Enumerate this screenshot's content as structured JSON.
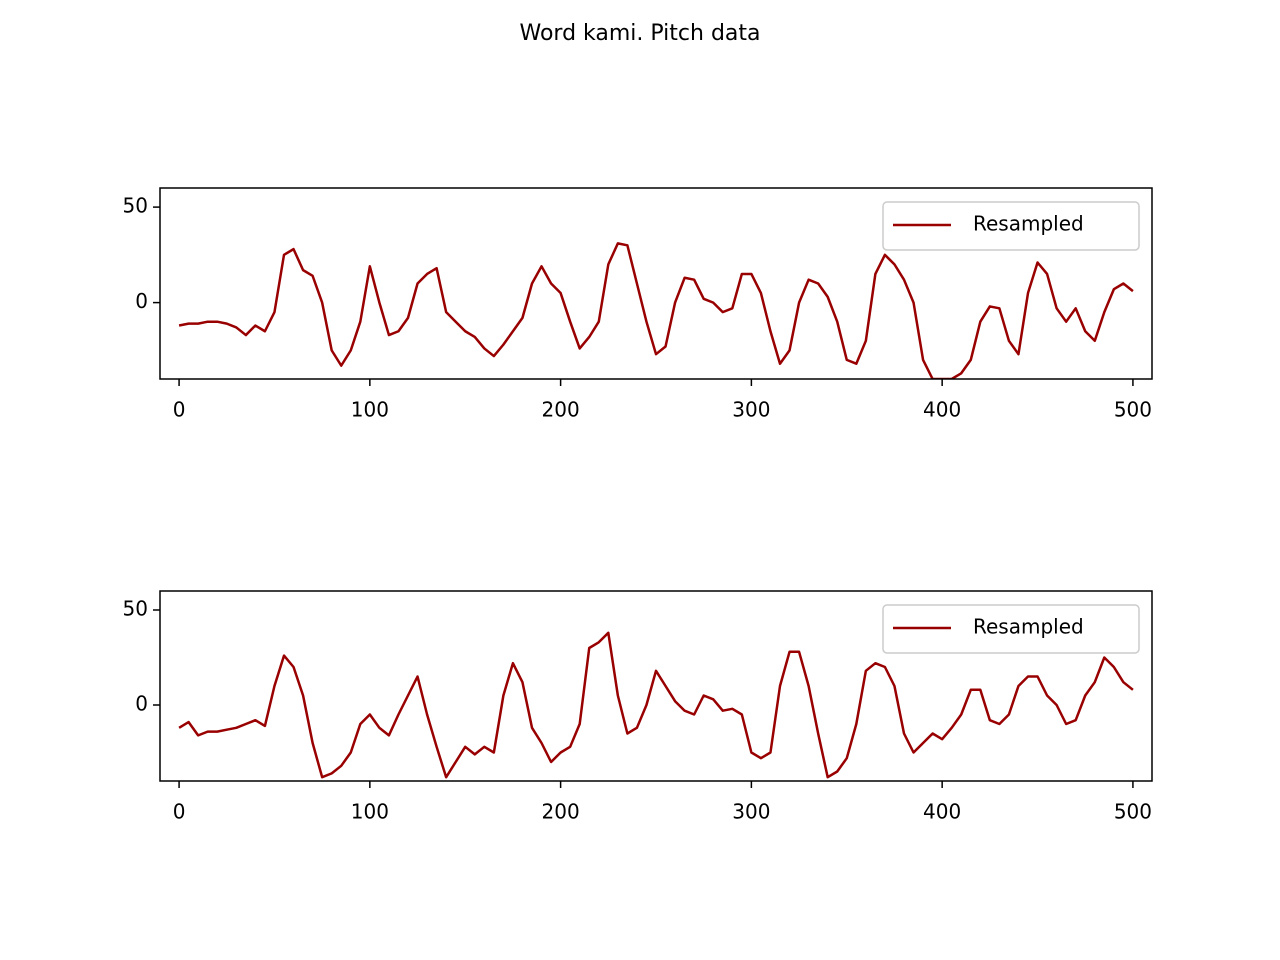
{
  "title": "Word kami. Pitch data",
  "chart_data": [
    {
      "type": "line",
      "x": [
        0,
        5,
        10,
        15,
        20,
        25,
        30,
        35,
        40,
        45,
        50,
        55,
        60,
        65,
        70,
        75,
        80,
        85,
        90,
        95,
        100,
        105,
        110,
        115,
        120,
        125,
        130,
        135,
        140,
        145,
        150,
        155,
        160,
        165,
        170,
        175,
        180,
        185,
        190,
        195,
        200,
        205,
        210,
        215,
        220,
        225,
        230,
        235,
        240,
        245,
        250,
        255,
        260,
        265,
        270,
        275,
        280,
        285,
        290,
        295,
        300,
        305,
        310,
        315,
        320,
        325,
        330,
        335,
        340,
        345,
        350,
        355,
        360,
        365,
        370,
        375,
        380,
        385,
        390,
        395,
        400,
        405,
        410,
        415,
        420,
        425,
        430,
        435,
        440,
        445,
        450,
        455,
        460,
        465,
        470,
        475,
        480,
        485,
        490,
        495,
        500
      ],
      "series": [
        {
          "name": "Resampled",
          "color": "#990000",
          "values": [
            -12,
            -11,
            -11,
            -10,
            -10,
            -11,
            -13,
            -17,
            -12,
            -15,
            -5,
            25,
            28,
            17,
            14,
            0,
            -25,
            -33,
            -25,
            -10,
            19,
            0,
            -17,
            -15,
            -8,
            10,
            15,
            18,
            -5,
            -10,
            -15,
            -18,
            -24,
            -28,
            -22,
            -15,
            -8,
            10,
            19,
            10,
            5,
            -10,
            -24,
            -18,
            -10,
            20,
            31,
            30,
            10,
            -10,
            -27,
            -23,
            0,
            13,
            12,
            2,
            0,
            -5,
            -3,
            15,
            15,
            5,
            -15,
            -32,
            -25,
            0,
            12,
            10,
            3,
            -10,
            -30,
            -32,
            -20,
            15,
            25,
            20,
            12,
            0,
            -30,
            -40,
            -40,
            -40,
            -37,
            -30,
            -10,
            -2,
            -3,
            -20,
            -27,
            5,
            21,
            15,
            -3,
            -10,
            -3,
            -15,
            -20,
            -5,
            7,
            10,
            6
          ]
        }
      ],
      "xlim": [
        -10,
        510
      ],
      "ylim": [
        -40,
        60
      ],
      "xticks": [
        0,
        100,
        200,
        300,
        400,
        500
      ],
      "yticks": [
        0,
        50
      ],
      "legend": "upper right"
    },
    {
      "type": "line",
      "x": [
        0,
        5,
        10,
        15,
        20,
        25,
        30,
        35,
        40,
        45,
        50,
        55,
        60,
        65,
        70,
        75,
        80,
        85,
        90,
        95,
        100,
        105,
        110,
        115,
        120,
        125,
        130,
        135,
        140,
        145,
        150,
        155,
        160,
        165,
        170,
        175,
        180,
        185,
        190,
        195,
        200,
        205,
        210,
        215,
        220,
        225,
        230,
        235,
        240,
        245,
        250,
        255,
        260,
        265,
        270,
        275,
        280,
        285,
        290,
        295,
        300,
        305,
        310,
        315,
        320,
        325,
        330,
        335,
        340,
        345,
        350,
        355,
        360,
        365,
        370,
        375,
        380,
        385,
        390,
        395,
        400,
        405,
        410,
        415,
        420,
        425,
        430,
        435,
        440,
        445,
        450,
        455,
        460,
        465,
        470,
        475,
        480,
        485,
        490,
        495,
        500
      ],
      "series": [
        {
          "name": "Resampled",
          "color": "#990000",
          "values": [
            -12,
            -9,
            -16,
            -14,
            -14,
            -13,
            -12,
            -10,
            -8,
            -11,
            10,
            26,
            20,
            5,
            -20,
            -38,
            -36,
            -32,
            -25,
            -10,
            -5,
            -12,
            -16,
            -5,
            5,
            15,
            -5,
            -22,
            -38,
            -30,
            -22,
            -26,
            -22,
            -25,
            5,
            22,
            12,
            -12,
            -20,
            -30,
            -25,
            -22,
            -10,
            30,
            33,
            38,
            5,
            -15,
            -12,
            0,
            18,
            10,
            2,
            -3,
            -5,
            5,
            3,
            -3,
            -2,
            -5,
            -25,
            -28,
            -25,
            10,
            28,
            28,
            10,
            -15,
            -38,
            -35,
            -28,
            -10,
            18,
            22,
            20,
            10,
            -15,
            -25,
            -20,
            -15,
            -18,
            -12,
            -5,
            8,
            8,
            -8,
            -10,
            -5,
            10,
            15,
            15,
            5,
            0,
            -10,
            -8,
            5,
            12,
            25,
            20,
            12,
            8
          ]
        }
      ],
      "xlim": [
        -10,
        510
      ],
      "ylim": [
        -40,
        60
      ],
      "xticks": [
        0,
        100,
        200,
        300,
        400,
        500
      ],
      "yticks": [
        0,
        50
      ],
      "legend": "upper right"
    }
  ]
}
